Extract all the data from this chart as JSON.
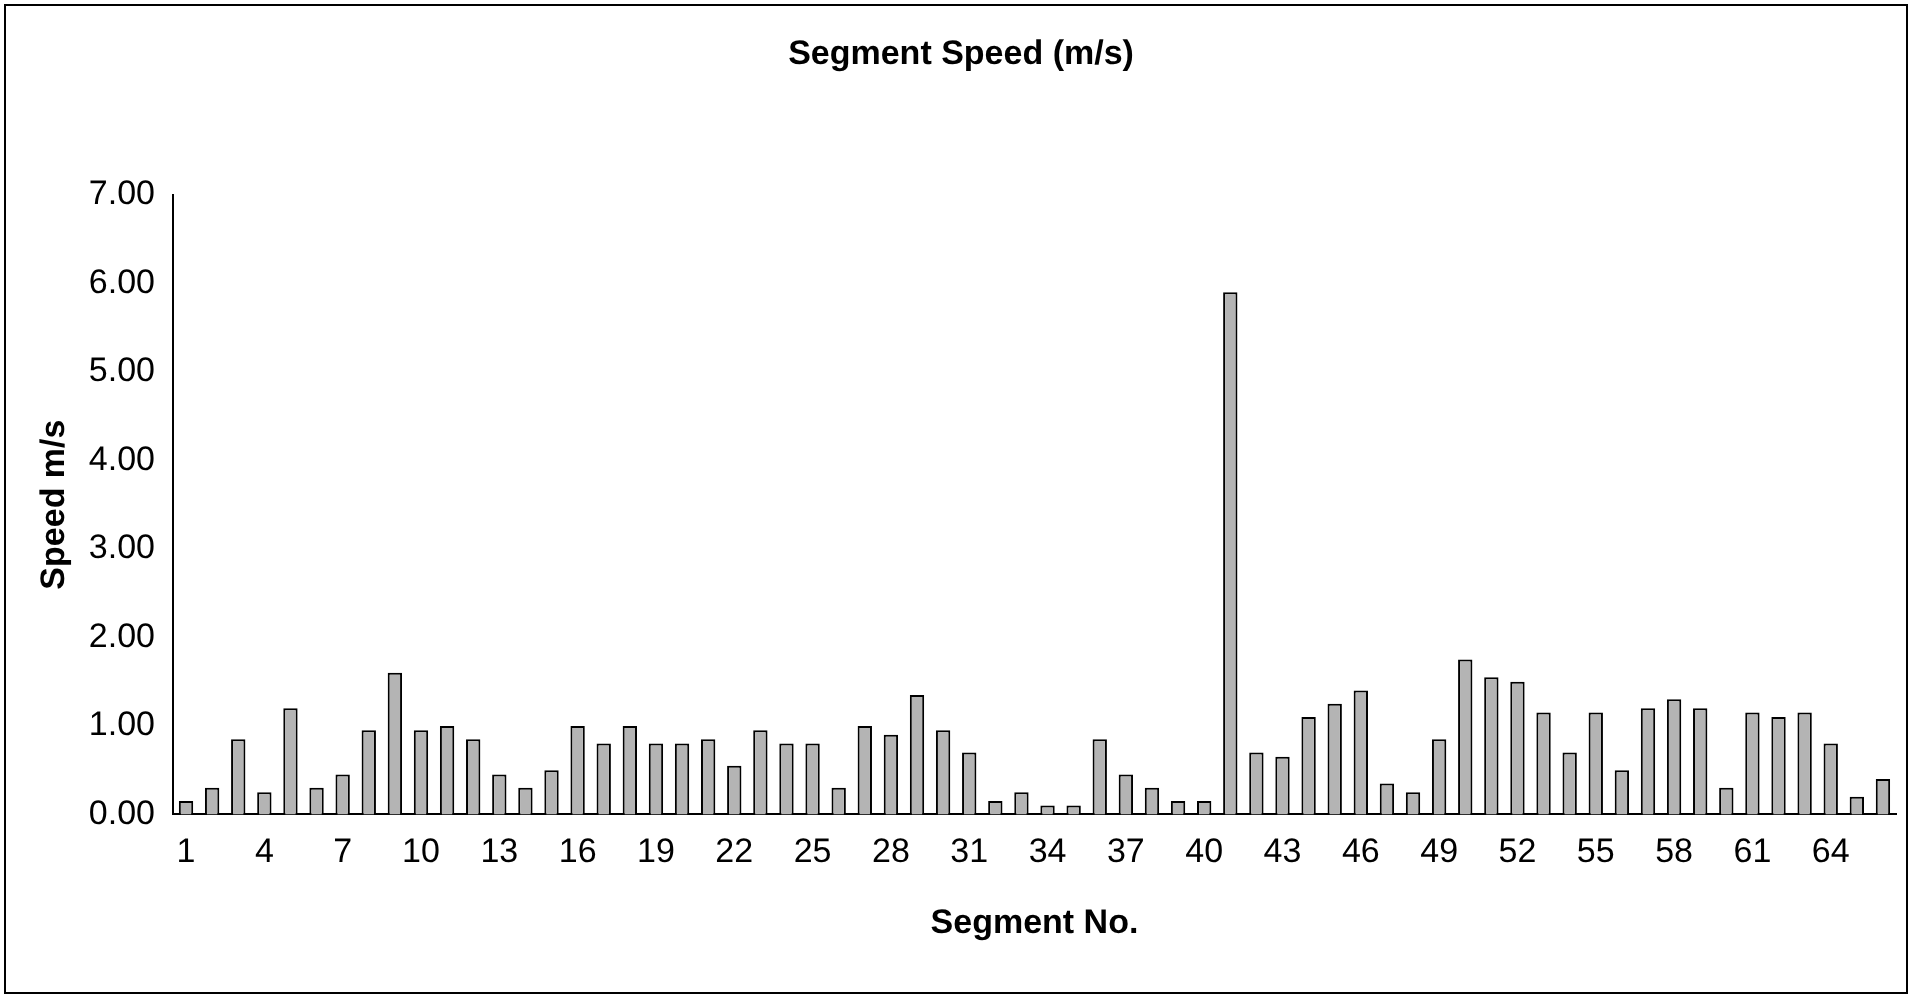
{
  "chart_data": {
    "type": "bar",
    "title": "Segment Speed (m/s)",
    "xlabel": "Segment No.",
    "ylabel": "Speed m/s",
    "categories": [
      "1",
      null,
      null,
      "4",
      null,
      null,
      "7",
      null,
      null,
      "10",
      null,
      null,
      "13",
      null,
      null,
      "16",
      null,
      null,
      "19",
      null,
      null,
      "22",
      null,
      null,
      "25",
      null,
      null,
      "28",
      null,
      null,
      "31",
      null,
      null,
      "34",
      null,
      null,
      "37",
      null,
      null,
      "40",
      null,
      null,
      "43",
      null,
      null,
      "46",
      null,
      null,
      "49",
      null,
      null,
      "52",
      null,
      null,
      "55",
      null,
      null,
      "58",
      null,
      null,
      "61",
      null,
      null,
      "64",
      null,
      null
    ],
    "values": [
      0.15,
      0.3,
      0.85,
      0.25,
      1.2,
      0.3,
      0.45,
      0.95,
      1.6,
      0.95,
      1.0,
      0.85,
      0.45,
      0.3,
      0.5,
      1.0,
      0.8,
      1.0,
      0.8,
      0.8,
      0.85,
      0.55,
      0.95,
      0.8,
      0.8,
      0.3,
      1.0,
      0.9,
      1.35,
      0.95,
      0.7,
      0.15,
      0.25,
      0.1,
      0.1,
      0.85,
      0.45,
      0.3,
      0.15,
      0.15,
      5.9,
      0.7,
      0.65,
      1.1,
      1.25,
      1.4,
      0.35,
      0.25,
      0.85,
      1.75,
      1.55,
      1.5,
      1.15,
      0.7,
      1.15,
      0.5,
      1.2,
      1.3,
      1.2,
      0.3,
      1.15,
      1.1,
      1.15,
      0.8,
      0.2,
      0.4
    ],
    "color": "#b4b4b4",
    "ylim": [
      0,
      7
    ],
    "yticks": [
      {
        "value": 0,
        "label": "0.00"
      },
      {
        "value": 1,
        "label": "1.00"
      },
      {
        "value": 2,
        "label": "2.00"
      },
      {
        "value": 3,
        "label": "3.00"
      },
      {
        "value": 4,
        "label": "4.00"
      },
      {
        "value": 5,
        "label": "5.00"
      },
      {
        "value": 6,
        "label": "6.00"
      },
      {
        "value": 7,
        "label": "7.00"
      }
    ],
    "grid": false,
    "legend": false
  }
}
